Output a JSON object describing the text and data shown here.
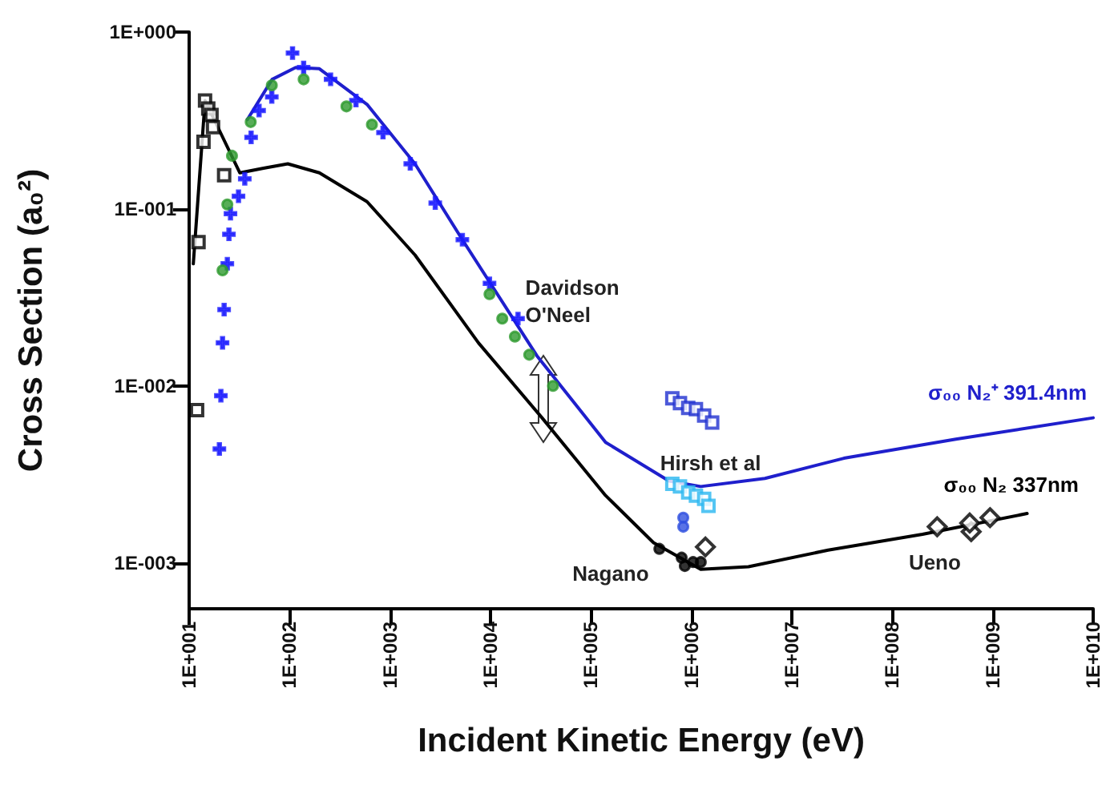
{
  "chart_data": {
    "type": "line",
    "xlabel": "Incident Kinetic Energy (eV)",
    "ylabel": "Cross Section (a₀²)",
    "log": "xy",
    "grid": false,
    "legend": false,
    "xlim": [
      10,
      10000000000
    ],
    "xticks": [
      {
        "value": 10,
        "label": "1E+001"
      },
      {
        "value": 100,
        "label": "1E+002"
      },
      {
        "value": 1000,
        "label": "1E+003"
      },
      {
        "value": 10000,
        "label": "1E+004"
      },
      {
        "value": 100000,
        "label": "1E+005"
      },
      {
        "value": 1000000,
        "label": "1E+006"
      },
      {
        "value": 10000000,
        "label": "1E+007"
      },
      {
        "value": 100000000,
        "label": "1E+008"
      },
      {
        "value": 1000000000,
        "label": "1E+009"
      },
      {
        "value": 10000000000,
        "label": "1E+010"
      }
    ],
    "ylim": [
      0.00055,
      1
    ],
    "yticks": [
      {
        "value": 0.001,
        "label": "1E-003"
      },
      {
        "value": 0.01,
        "label": "1E-002"
      },
      {
        "value": 0.1,
        "label": "1E-001"
      },
      {
        "value": 1,
        "label": "1E+000"
      }
    ],
    "annotations": [
      "Davidson O'Neel",
      "Hirsh et al",
      "Nagano",
      "Ueno"
    ],
    "series": [
      {
        "name": "σ₀₀ N₂ 337nm",
        "marker": "none",
        "color": "#000000",
        "x": [
          11,
          14.4,
          19.3,
          32,
          55,
          96,
          198,
          590,
          1770,
          7600,
          32600,
          140000,
          420000,
          1240000,
          3700000,
          23000000,
          200000000,
          2200000000
        ],
        "values": [
          0.049,
          0.41,
          0.29,
          0.16,
          0.17,
          0.18,
          0.16,
          0.11,
          0.055,
          0.0175,
          0.0066,
          0.0024,
          0.0013,
          0.00092,
          0.00095,
          0.00118,
          0.00145,
          0.0019
        ]
      },
      {
        "name": "σ₀₀ N₂⁺ 391.4nm",
        "marker": "none",
        "color": "#1f1fcc",
        "x": [
          38,
          67,
          115,
          198,
          590,
          1770,
          5250,
          29000,
          140000,
          600000,
          1240000,
          5400000,
          33000000,
          430000000,
          10000000000
        ],
        "values": [
          0.32,
          0.54,
          0.63,
          0.62,
          0.39,
          0.18,
          0.067,
          0.0148,
          0.0048,
          0.0029,
          0.0027,
          0.003,
          0.0039,
          0.005,
          0.0066
        ]
      },
      {
        "type": "scatter",
        "marker": "cross",
        "color": "#1a1aff",
        "x": [
          20,
          20.7,
          21.5,
          22.3,
          24,
          24.9,
          25.8,
          31,
          35.8,
          41.4,
          49.7,
          66.5,
          107,
          138,
          256,
          458,
          851,
          1590,
          2820,
          5250,
          9780,
          18800
        ],
        "values": [
          0.0044,
          0.0088,
          0.0175,
          0.027,
          0.049,
          0.072,
          0.094,
          0.118,
          0.148,
          0.254,
          0.36,
          0.43,
          0.76,
          0.63,
          0.54,
          0.41,
          0.27,
          0.18,
          0.108,
          0.067,
          0.038,
          0.024
        ]
      },
      {
        "type": "scatter",
        "marker": "circle",
        "color": "#2e9a2e",
        "x": [
          21.5,
          24,
          26.7,
          41,
          66.5,
          138,
          368,
          660,
          9780,
          13100,
          17500,
          24300,
          41900
        ],
        "values": [
          0.045,
          0.106,
          0.2,
          0.31,
          0.5,
          0.54,
          0.38,
          0.3,
          0.033,
          0.024,
          0.019,
          0.015,
          0.01
        ]
      },
      {
        "type": "scatter",
        "marker": "square",
        "color": "#000000",
        "x": [
          12,
          12.4,
          13.9,
          14.4,
          15.5,
          16.7,
          17.3,
          22.3
        ],
        "values": [
          0.0073,
          0.065,
          0.24,
          0.41,
          0.37,
          0.34,
          0.29,
          0.155
        ]
      },
      {
        "type": "scatter",
        "marker": "square",
        "color": "#1f2fd0",
        "x": [
          646000,
          770000,
          930000,
          1110000,
          1340000,
          1610000
        ],
        "values": [
          0.0085,
          0.008,
          0.0075,
          0.0074,
          0.0068,
          0.0062
        ]
      },
      {
        "type": "scatter",
        "marker": "square",
        "color": "#29b6f0",
        "x": [
          646000,
          770000,
          930000,
          1110000,
          1340000,
          1480000
        ],
        "values": [
          0.0028,
          0.0027,
          0.0025,
          0.0024,
          0.0023,
          0.0021
        ]
      },
      {
        "type": "scatter",
        "marker": "circle",
        "color": "#3050e0",
        "x": [
          830000,
          830000
        ],
        "values": [
          0.0018,
          0.0016
        ]
      },
      {
        "type": "scatter",
        "marker": "circle",
        "color": "#000000",
        "x": [
          480000,
          800000,
          860000,
          1040000,
          1240000
        ],
        "values": [
          0.0012,
          0.00107,
          0.00096,
          0.00101,
          0.00101
        ]
      },
      {
        "type": "scatter",
        "marker": "diamond",
        "color": "#000000",
        "x": [
          1380000,
          280000000,
          610000000,
          590000000,
          940000000
        ],
        "values": [
          0.00123,
          0.0016,
          0.0015,
          0.00168,
          0.0018
        ]
      }
    ]
  }
}
